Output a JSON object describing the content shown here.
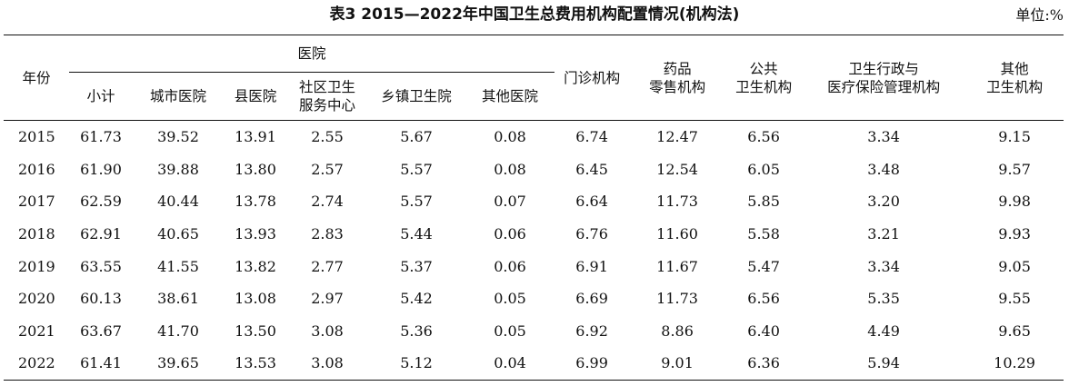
{
  "title": "表3 2015—2022年中国卫生总费用机构配置情况(机构法)",
  "unit": "单位:%",
  "headers": {
    "year": "年份",
    "hospital_group": "医院",
    "hospital_sub": [
      "小计",
      "城市医院",
      "县医院",
      "社区卫生\n服务中心",
      "乡镇卫生院",
      "其他医院"
    ],
    "outpatient": "门诊机构",
    "pharmacy": "药品\n零售机构",
    "public_health": "公共\n卫生机构",
    "admin": "卫生行政与\n医疗保险管理机构",
    "other": "其他\n卫生机构"
  },
  "rows": [
    {
      "year": "2015",
      "values": [
        "61.73",
        "39.52",
        "13.91",
        "2.55",
        "5.67",
        "0.08",
        "6.74",
        "12.47",
        "6.56",
        "3.34",
        "9.15"
      ]
    },
    {
      "year": "2016",
      "values": [
        "61.90",
        "39.88",
        "13.80",
        "2.57",
        "5.57",
        "0.08",
        "6.45",
        "12.54",
        "6.05",
        "3.48",
        "9.57"
      ]
    },
    {
      "year": "2017",
      "values": [
        "62.59",
        "40.44",
        "13.78",
        "2.74",
        "5.57",
        "0.07",
        "6.64",
        "11.73",
        "5.85",
        "3.20",
        "9.98"
      ]
    },
    {
      "year": "2018",
      "values": [
        "62.91",
        "40.65",
        "13.93",
        "2.83",
        "5.44",
        "0.06",
        "6.76",
        "11.60",
        "5.58",
        "3.21",
        "9.93"
      ]
    },
    {
      "year": "2019",
      "values": [
        "63.55",
        "41.55",
        "13.82",
        "2.77",
        "5.37",
        "0.06",
        "6.91",
        "11.67",
        "5.47",
        "3.34",
        "9.05"
      ]
    },
    {
      "year": "2020",
      "values": [
        "60.13",
        "38.61",
        "13.08",
        "2.97",
        "5.42",
        "0.05",
        "6.69",
        "11.73",
        "6.56",
        "5.35",
        "9.55"
      ]
    },
    {
      "year": "2021",
      "values": [
        "63.67",
        "41.70",
        "13.50",
        "3.08",
        "5.36",
        "0.05",
        "6.92",
        "8.86",
        "6.40",
        "4.49",
        "9.65"
      ]
    },
    {
      "year": "2022",
      "values": [
        "61.41",
        "39.65",
        "13.53",
        "3.08",
        "5.12",
        "0.04",
        "6.99",
        "9.01",
        "6.36",
        "5.94",
        "10.29"
      ]
    }
  ]
}
